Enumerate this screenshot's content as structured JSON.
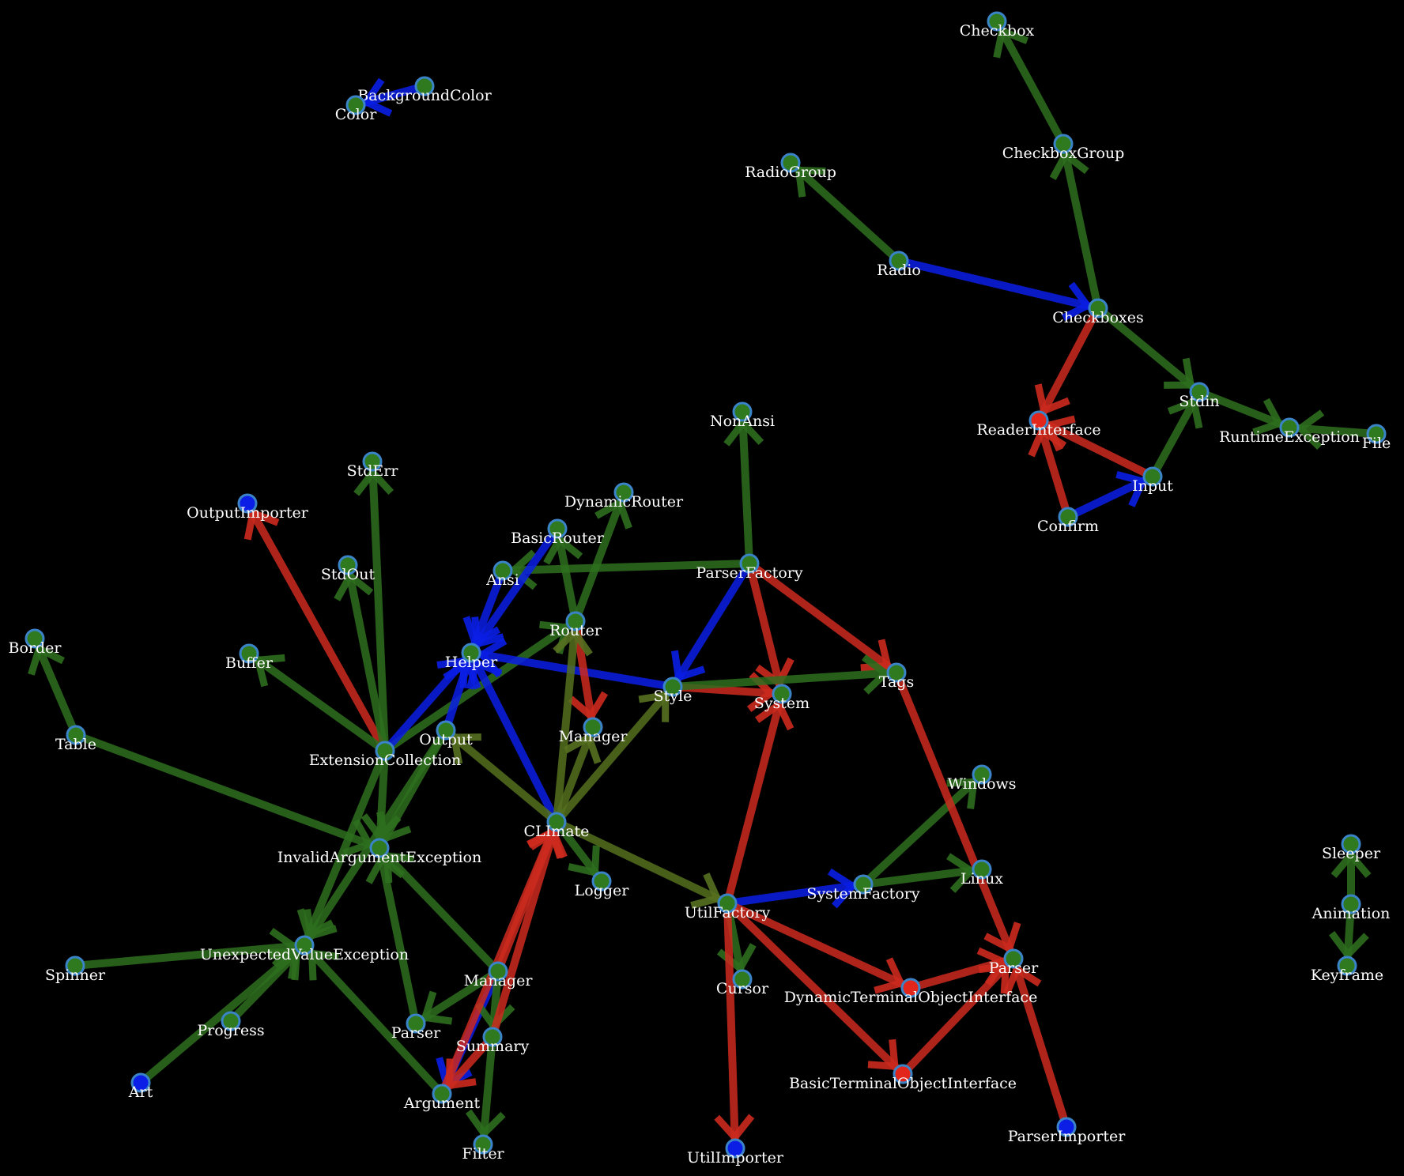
{
  "colors": {
    "background": "#000000",
    "edge_green": "#2e6e1e",
    "edge_olive": "#55701f",
    "edge_red": "#cc2a1e",
    "edge_blue": "#0a1ee6",
    "node_green": "#2f7a1f",
    "node_red": "#e2261c",
    "node_blue": "#0a1ee6",
    "node_border": "#3a83c7",
    "label": "#ffffff"
  },
  "nodes": [
    {
      "id": "checkbox",
      "label": "Checkbox",
      "fill": "green"
    },
    {
      "id": "checkboxgroup",
      "label": "CheckboxGroup",
      "fill": "green"
    },
    {
      "id": "radiogroup",
      "label": "RadioGroup",
      "fill": "green"
    },
    {
      "id": "radio",
      "label": "Radio",
      "fill": "green"
    },
    {
      "id": "checkboxes",
      "label": "Checkboxes",
      "fill": "green"
    },
    {
      "id": "stdin",
      "label": "Stdin",
      "fill": "green"
    },
    {
      "id": "readerinterface",
      "label": "ReaderInterface",
      "fill": "red"
    },
    {
      "id": "runtimeexception",
      "label": "RuntimeException",
      "fill": "green"
    },
    {
      "id": "file",
      "label": "File",
      "fill": "green"
    },
    {
      "id": "input",
      "label": "Input",
      "fill": "green"
    },
    {
      "id": "confirm",
      "label": "Confirm",
      "fill": "green"
    },
    {
      "id": "backgroundcolor",
      "label": "BackgroundColor",
      "fill": "green"
    },
    {
      "id": "color",
      "label": "Color",
      "fill": "green"
    },
    {
      "id": "nonansi",
      "label": "NonAnsi",
      "fill": "green"
    },
    {
      "id": "stderr",
      "label": "StdErr",
      "fill": "green"
    },
    {
      "id": "outputimporter",
      "label": "OutputImporter",
      "fill": "blue"
    },
    {
      "id": "dynamicrouter",
      "label": "DynamicRouter",
      "fill": "green"
    },
    {
      "id": "basicrouter",
      "label": "BasicRouter",
      "fill": "green"
    },
    {
      "id": "ansi",
      "label": "Ansi",
      "fill": "green"
    },
    {
      "id": "parserfactory",
      "label": "ParserFactory",
      "fill": "green"
    },
    {
      "id": "stdout",
      "label": "StdOut",
      "fill": "green"
    },
    {
      "id": "router",
      "label": "Router",
      "fill": "green"
    },
    {
      "id": "border",
      "label": "Border",
      "fill": "green"
    },
    {
      "id": "buffer",
      "label": "Buffer",
      "fill": "green"
    },
    {
      "id": "helper",
      "label": "Helper",
      "fill": "green"
    },
    {
      "id": "style",
      "label": "Style",
      "fill": "green"
    },
    {
      "id": "system",
      "label": "System",
      "fill": "green"
    },
    {
      "id": "tags",
      "label": "Tags",
      "fill": "green"
    },
    {
      "id": "table",
      "label": "Table",
      "fill": "green"
    },
    {
      "id": "output",
      "label": "Output",
      "fill": "green"
    },
    {
      "id": "manager1",
      "label": "Manager",
      "fill": "green"
    },
    {
      "id": "extensioncollection",
      "label": "ExtensionCollection",
      "fill": "green"
    },
    {
      "id": "windows",
      "label": "Windows",
      "fill": "green"
    },
    {
      "id": "climate",
      "label": "CLImate",
      "fill": "green"
    },
    {
      "id": "invalidargumentexception",
      "label": "InvalidArgumentException",
      "fill": "green"
    },
    {
      "id": "logger",
      "label": "Logger",
      "fill": "green"
    },
    {
      "id": "linux",
      "label": "Linux",
      "fill": "green"
    },
    {
      "id": "systemfactory",
      "label": "SystemFactory",
      "fill": "green"
    },
    {
      "id": "sleeper",
      "label": "Sleeper",
      "fill": "green"
    },
    {
      "id": "utilfactory",
      "label": "UtilFactory",
      "fill": "green"
    },
    {
      "id": "animation",
      "label": "Animation",
      "fill": "green"
    },
    {
      "id": "unexpectedvalueexception",
      "label": "UnexpectedValueException",
      "fill": "green"
    },
    {
      "id": "spinner",
      "label": "Spinner",
      "fill": "green"
    },
    {
      "id": "manager2",
      "label": "Manager",
      "fill": "green"
    },
    {
      "id": "parser2",
      "label": "Parser",
      "fill": "green"
    },
    {
      "id": "keyframe",
      "label": "Keyframe",
      "fill": "green"
    },
    {
      "id": "cursor",
      "label": "Cursor",
      "fill": "green"
    },
    {
      "id": "dynamicterminalobjectinterface",
      "label": "DynamicTerminalObjectInterface",
      "fill": "red"
    },
    {
      "id": "progress",
      "label": "Progress",
      "fill": "green"
    },
    {
      "id": "parser1",
      "label": "Parser",
      "fill": "green"
    },
    {
      "id": "summary",
      "label": "Summary",
      "fill": "green"
    },
    {
      "id": "art",
      "label": "Art",
      "fill": "blue"
    },
    {
      "id": "argument",
      "label": "Argument",
      "fill": "green"
    },
    {
      "id": "basicterminalobjectinterface",
      "label": "BasicTerminalObjectInterface",
      "fill": "red"
    },
    {
      "id": "filter",
      "label": "Filter",
      "fill": "green"
    },
    {
      "id": "utilimporter",
      "label": "UtilImporter",
      "fill": "blue"
    },
    {
      "id": "parserimporter",
      "label": "ParserImporter",
      "fill": "blue"
    }
  ],
  "edges": [
    {
      "from": "checkboxgroup",
      "to": "checkbox",
      "color": "green"
    },
    {
      "from": "checkboxes",
      "to": "checkboxgroup",
      "color": "green"
    },
    {
      "from": "radio",
      "to": "radiogroup",
      "color": "green"
    },
    {
      "from": "radio",
      "to": "checkboxes",
      "color": "blue"
    },
    {
      "from": "checkboxes",
      "to": "stdin",
      "color": "green"
    },
    {
      "from": "checkboxes",
      "to": "readerinterface",
      "color": "red"
    },
    {
      "from": "stdin",
      "to": "runtimeexception",
      "color": "green"
    },
    {
      "from": "file",
      "to": "runtimeexception",
      "color": "green"
    },
    {
      "from": "input",
      "to": "stdin",
      "color": "green"
    },
    {
      "from": "input",
      "to": "readerinterface",
      "color": "red"
    },
    {
      "from": "confirm",
      "to": "readerinterface",
      "color": "red"
    },
    {
      "from": "confirm",
      "to": "input",
      "color": "blue"
    },
    {
      "from": "backgroundcolor",
      "to": "color",
      "color": "blue"
    },
    {
      "from": "parserfactory",
      "to": "nonansi",
      "color": "green"
    },
    {
      "from": "extensioncollection",
      "to": "stderr",
      "color": "green"
    },
    {
      "from": "extensioncollection",
      "to": "outputimporter",
      "color": "red"
    },
    {
      "from": "router",
      "to": "dynamicrouter",
      "color": "green"
    },
    {
      "from": "router",
      "to": "basicrouter",
      "color": "green"
    },
    {
      "from": "parserfactory",
      "to": "ansi",
      "color": "green"
    },
    {
      "from": "basicrouter",
      "to": "helper",
      "color": "blue"
    },
    {
      "from": "ansi",
      "to": "helper",
      "color": "blue"
    },
    {
      "from": "extensioncollection",
      "to": "stdout",
      "color": "green"
    },
    {
      "from": "table",
      "to": "border",
      "color": "green"
    },
    {
      "from": "extensioncollection",
      "to": "buffer",
      "color": "green"
    },
    {
      "from": "extensioncollection",
      "to": "router",
      "color": "green"
    },
    {
      "from": "style",
      "to": "helper",
      "color": "blue"
    },
    {
      "from": "parserfactory",
      "to": "style",
      "color": "blue"
    },
    {
      "from": "parserfactory",
      "to": "system",
      "color": "red"
    },
    {
      "from": "parserfactory",
      "to": "tags",
      "color": "red"
    },
    {
      "from": "style",
      "to": "system",
      "color": "red"
    },
    {
      "from": "style",
      "to": "tags",
      "color": "green"
    },
    {
      "from": "router",
      "to": "manager1",
      "color": "red"
    },
    {
      "from": "extensioncollection",
      "to": "helper",
      "color": "blue"
    },
    {
      "from": "output",
      "to": "helper",
      "color": "blue"
    },
    {
      "from": "climate",
      "to": "helper",
      "color": "blue"
    },
    {
      "from": "climate",
      "to": "output",
      "color": "olive"
    },
    {
      "from": "climate",
      "to": "router",
      "color": "olive"
    },
    {
      "from": "climate",
      "to": "manager1",
      "color": "olive"
    },
    {
      "from": "climate",
      "to": "style",
      "color": "olive"
    },
    {
      "from": "climate",
      "to": "logger",
      "color": "green"
    },
    {
      "from": "climate",
      "to": "utilfactory",
      "color": "olive"
    },
    {
      "from": "table",
      "to": "invalidargumentexception",
      "color": "green"
    },
    {
      "from": "extensioncollection",
      "to": "invalidargumentexception",
      "color": "green"
    },
    {
      "from": "output",
      "to": "invalidargumentexception",
      "color": "green"
    },
    {
      "from": "output",
      "to": "unexpectedvalueexception",
      "color": "green"
    },
    {
      "from": "extensioncollection",
      "to": "unexpectedvalueexception",
      "color": "green"
    },
    {
      "from": "spinner",
      "to": "unexpectedvalueexception",
      "color": "green"
    },
    {
      "from": "progress",
      "to": "unexpectedvalueexception",
      "color": "green"
    },
    {
      "from": "art",
      "to": "unexpectedvalueexception",
      "color": "green"
    },
    {
      "from": "argument",
      "to": "unexpectedvalueexception",
      "color": "green"
    },
    {
      "from": "manager2",
      "to": "invalidargumentexception",
      "color": "green"
    },
    {
      "from": "parser1",
      "to": "invalidargumentexception",
      "color": "green"
    },
    {
      "from": "manager2",
      "to": "parser1",
      "color": "green"
    },
    {
      "from": "manager2",
      "to": "argument",
      "color": "blue"
    },
    {
      "from": "manager2",
      "to": "summary",
      "color": "green"
    },
    {
      "from": "summary",
      "to": "filter",
      "color": "green"
    },
    {
      "from": "summary",
      "to": "climate",
      "color": "red"
    },
    {
      "from": "argument",
      "to": "climate",
      "color": "red"
    },
    {
      "from": "manager2",
      "to": "climate",
      "color": "red"
    },
    {
      "from": "summary",
      "to": "argument",
      "color": "red"
    },
    {
      "from": "utilfactory",
      "to": "system",
      "color": "red"
    },
    {
      "from": "utilfactory",
      "to": "systemfactory",
      "color": "blue"
    },
    {
      "from": "systemfactory",
      "to": "windows",
      "color": "green"
    },
    {
      "from": "systemfactory",
      "to": "linux",
      "color": "green"
    },
    {
      "from": "tags",
      "to": "parser2",
      "color": "red"
    },
    {
      "from": "utilfactory",
      "to": "cursor",
      "color": "green"
    },
    {
      "from": "utilfactory",
      "to": "dynamicterminalobjectinterface",
      "color": "red"
    },
    {
      "from": "utilfactory",
      "to": "basicterminalobjectinterface",
      "color": "red"
    },
    {
      "from": "utilfactory",
      "to": "utilimporter",
      "color": "red"
    },
    {
      "from": "dynamicterminalobjectinterface",
      "to": "parser2",
      "color": "red"
    },
    {
      "from": "basicterminalobjectinterface",
      "to": "parser2",
      "color": "red"
    },
    {
      "from": "parserimporter",
      "to": "parser2",
      "color": "red"
    },
    {
      "from": "animation",
      "to": "sleeper",
      "color": "green"
    },
    {
      "from": "animation",
      "to": "keyframe",
      "color": "green"
    }
  ]
}
